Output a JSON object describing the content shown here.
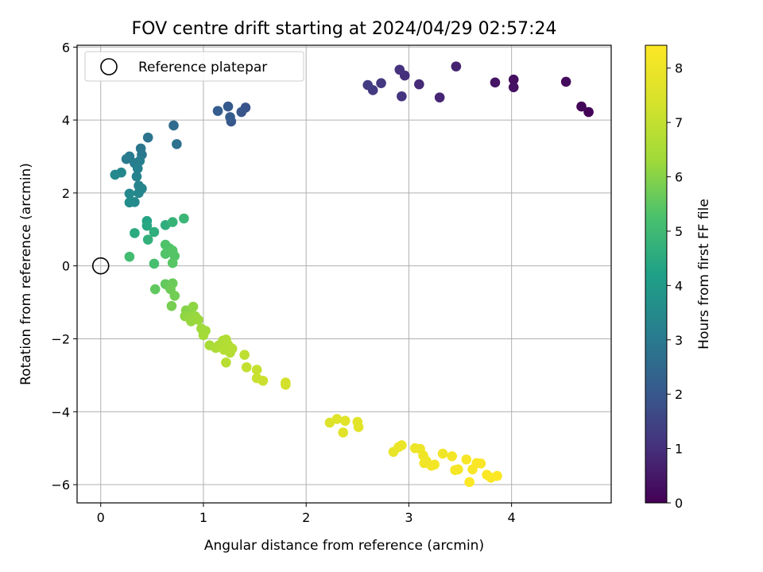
{
  "chart_data": {
    "type": "scatter",
    "title": "FOV centre drift starting at 2024/04/29 02:57:24",
    "xlabel": "Angular distance from reference (arcmin)",
    "ylabel": "Rotation from reference (arcmin)",
    "xlim": [
      -0.23,
      4.97
    ],
    "ylim": [
      -6.5,
      6.05
    ],
    "xticks": [
      0,
      1,
      2,
      3,
      4
    ],
    "yticks": [
      -6,
      -4,
      -2,
      0,
      2,
      4,
      6
    ],
    "grid": true,
    "legend": {
      "position": "top-left",
      "entries": [
        "Reference platepar"
      ]
    },
    "reference_point": {
      "x": 0,
      "y": 0
    },
    "colorbar": {
      "label": "Hours from first FF file",
      "range": [
        0,
        8.42
      ],
      "ticks": [
        0,
        1,
        2,
        3,
        4,
        5,
        6,
        7,
        8
      ],
      "colormap": "viridis"
    },
    "points": [
      {
        "x": 4.75,
        "y": 4.22,
        "h": 0.05
      },
      {
        "x": 4.68,
        "y": 4.37,
        "h": 0.1
      },
      {
        "x": 4.53,
        "y": 5.05,
        "h": 0.2
      },
      {
        "x": 4.02,
        "y": 5.11,
        "h": 0.3
      },
      {
        "x": 4.02,
        "y": 4.9,
        "h": 0.35
      },
      {
        "x": 3.84,
        "y": 5.03,
        "h": 0.4
      },
      {
        "x": 3.46,
        "y": 5.47,
        "h": 0.7
      },
      {
        "x": 3.3,
        "y": 4.62,
        "h": 0.8
      },
      {
        "x": 3.1,
        "y": 4.98,
        "h": 0.9
      },
      {
        "x": 2.96,
        "y": 5.22,
        "h": 1.0
      },
      {
        "x": 2.91,
        "y": 5.38,
        "h": 1.05
      },
      {
        "x": 2.93,
        "y": 4.65,
        "h": 1.1
      },
      {
        "x": 2.73,
        "y": 5.01,
        "h": 1.2
      },
      {
        "x": 2.65,
        "y": 4.82,
        "h": 1.25
      },
      {
        "x": 2.6,
        "y": 4.96,
        "h": 1.3
      },
      {
        "x": 1.41,
        "y": 4.34,
        "h": 1.9
      },
      {
        "x": 1.37,
        "y": 4.22,
        "h": 1.95
      },
      {
        "x": 1.27,
        "y": 3.96,
        "h": 2.0
      },
      {
        "x": 1.24,
        "y": 4.37,
        "h": 2.05
      },
      {
        "x": 1.26,
        "y": 4.08,
        "h": 2.1
      },
      {
        "x": 1.14,
        "y": 4.25,
        "h": 2.15
      },
      {
        "x": 0.71,
        "y": 3.85,
        "h": 2.6
      },
      {
        "x": 0.74,
        "y": 3.34,
        "h": 2.7
      },
      {
        "x": 0.46,
        "y": 3.52,
        "h": 2.8
      },
      {
        "x": 0.39,
        "y": 3.22,
        "h": 2.9
      },
      {
        "x": 0.4,
        "y": 3.05,
        "h": 2.95
      },
      {
        "x": 0.28,
        "y": 3.0,
        "h": 3.0
      },
      {
        "x": 0.25,
        "y": 2.93,
        "h": 3.05
      },
      {
        "x": 0.33,
        "y": 2.82,
        "h": 3.1
      },
      {
        "x": 0.38,
        "y": 2.88,
        "h": 3.15
      },
      {
        "x": 0.36,
        "y": 2.67,
        "h": 3.2
      },
      {
        "x": 0.35,
        "y": 2.45,
        "h": 3.25
      },
      {
        "x": 0.37,
        "y": 2.2,
        "h": 3.3
      },
      {
        "x": 0.4,
        "y": 2.12,
        "h": 3.35
      },
      {
        "x": 0.37,
        "y": 2.0,
        "h": 3.4
      },
      {
        "x": 0.28,
        "y": 1.98,
        "h": 3.45
      },
      {
        "x": 0.33,
        "y": 1.75,
        "h": 3.5
      },
      {
        "x": 0.28,
        "y": 1.74,
        "h": 3.55
      },
      {
        "x": 0.2,
        "y": 2.56,
        "h": 3.4
      },
      {
        "x": 0.14,
        "y": 2.5,
        "h": 3.45
      },
      {
        "x": 0.45,
        "y": 1.23,
        "h": 4.3
      },
      {
        "x": 0.45,
        "y": 1.1,
        "h": 4.4
      },
      {
        "x": 0.33,
        "y": 0.9,
        "h": 4.5
      },
      {
        "x": 0.52,
        "y": 0.93,
        "h": 4.6
      },
      {
        "x": 0.46,
        "y": 0.72,
        "h": 4.7
      },
      {
        "x": 0.63,
        "y": 1.12,
        "h": 4.6
      },
      {
        "x": 0.7,
        "y": 1.2,
        "h": 4.8
      },
      {
        "x": 0.81,
        "y": 1.3,
        "h": 4.9
      },
      {
        "x": 0.28,
        "y": 0.25,
        "h": 5.1
      },
      {
        "x": 0.52,
        "y": 0.06,
        "h": 5.2
      },
      {
        "x": 0.63,
        "y": 0.58,
        "h": 5.3
      },
      {
        "x": 0.67,
        "y": 0.48,
        "h": 5.3
      },
      {
        "x": 0.63,
        "y": 0.33,
        "h": 5.35
      },
      {
        "x": 0.7,
        "y": 0.42,
        "h": 5.4
      },
      {
        "x": 0.72,
        "y": 0.27,
        "h": 5.4
      },
      {
        "x": 0.7,
        "y": 0.08,
        "h": 5.45
      },
      {
        "x": 0.63,
        "y": -0.5,
        "h": 5.55
      },
      {
        "x": 0.66,
        "y": -0.55,
        "h": 5.6
      },
      {
        "x": 0.7,
        "y": -0.48,
        "h": 5.65
      },
      {
        "x": 0.68,
        "y": -0.64,
        "h": 5.7
      },
      {
        "x": 0.72,
        "y": -0.82,
        "h": 5.75
      },
      {
        "x": 0.53,
        "y": -0.64,
        "h": 5.55
      },
      {
        "x": 0.69,
        "y": -1.1,
        "h": 5.8
      },
      {
        "x": 0.83,
        "y": -1.22,
        "h": 6.0
      },
      {
        "x": 0.88,
        "y": -1.2,
        "h": 6.05
      },
      {
        "x": 0.9,
        "y": -1.12,
        "h": 6.1
      },
      {
        "x": 0.82,
        "y": -1.38,
        "h": 6.1
      },
      {
        "x": 0.86,
        "y": -1.42,
        "h": 6.15
      },
      {
        "x": 0.92,
        "y": -1.38,
        "h": 6.2
      },
      {
        "x": 0.88,
        "y": -1.52,
        "h": 6.2
      },
      {
        "x": 0.95,
        "y": -1.48,
        "h": 6.25
      },
      {
        "x": 0.98,
        "y": -1.72,
        "h": 6.3
      },
      {
        "x": 1.02,
        "y": -1.78,
        "h": 6.35
      },
      {
        "x": 1.0,
        "y": -1.9,
        "h": 6.4
      },
      {
        "x": 1.06,
        "y": -2.18,
        "h": 6.5
      },
      {
        "x": 1.12,
        "y": -2.25,
        "h": 6.55
      },
      {
        "x": 1.15,
        "y": -2.18,
        "h": 6.6
      },
      {
        "x": 1.19,
        "y": -2.05,
        "h": 6.6
      },
      {
        "x": 1.22,
        "y": -2.02,
        "h": 6.65
      },
      {
        "x": 1.24,
        "y": -2.16,
        "h": 6.65
      },
      {
        "x": 1.2,
        "y": -2.3,
        "h": 6.7
      },
      {
        "x": 1.26,
        "y": -2.38,
        "h": 6.7
      },
      {
        "x": 1.28,
        "y": -2.27,
        "h": 6.75
      },
      {
        "x": 1.22,
        "y": -2.65,
        "h": 6.8
      },
      {
        "x": 1.4,
        "y": -2.44,
        "h": 6.9
      },
      {
        "x": 1.42,
        "y": -2.78,
        "h": 7.0
      },
      {
        "x": 1.52,
        "y": -2.85,
        "h": 7.05
      },
      {
        "x": 1.52,
        "y": -3.08,
        "h": 7.1
      },
      {
        "x": 1.58,
        "y": -3.15,
        "h": 7.15
      },
      {
        "x": 1.8,
        "y": -3.2,
        "h": 7.3
      },
      {
        "x": 1.8,
        "y": -3.26,
        "h": 7.3
      },
      {
        "x": 2.23,
        "y": -4.3,
        "h": 7.55
      },
      {
        "x": 2.3,
        "y": -4.2,
        "h": 7.6
      },
      {
        "x": 2.38,
        "y": -4.25,
        "h": 7.65
      },
      {
        "x": 2.36,
        "y": -4.57,
        "h": 7.65
      },
      {
        "x": 2.5,
        "y": -4.28,
        "h": 7.7
      },
      {
        "x": 2.51,
        "y": -4.42,
        "h": 7.7
      },
      {
        "x": 2.85,
        "y": -5.1,
        "h": 7.85
      },
      {
        "x": 2.9,
        "y": -4.97,
        "h": 7.9
      },
      {
        "x": 2.93,
        "y": -4.92,
        "h": 7.9
      },
      {
        "x": 3.06,
        "y": -5.0,
        "h": 8.0
      },
      {
        "x": 3.11,
        "y": -5.02,
        "h": 8.0
      },
      {
        "x": 3.14,
        "y": -5.2,
        "h": 8.05
      },
      {
        "x": 3.17,
        "y": -5.35,
        "h": 8.05
      },
      {
        "x": 3.15,
        "y": -5.41,
        "h": 8.1
      },
      {
        "x": 3.22,
        "y": -5.48,
        "h": 8.1
      },
      {
        "x": 3.25,
        "y": -5.45,
        "h": 8.15
      },
      {
        "x": 3.33,
        "y": -5.15,
        "h": 8.1
      },
      {
        "x": 3.42,
        "y": -5.22,
        "h": 8.15
      },
      {
        "x": 3.45,
        "y": -5.6,
        "h": 8.2
      },
      {
        "x": 3.48,
        "y": -5.58,
        "h": 8.2
      },
      {
        "x": 3.56,
        "y": -5.31,
        "h": 8.25
      },
      {
        "x": 3.62,
        "y": -5.58,
        "h": 8.25
      },
      {
        "x": 3.66,
        "y": -5.41,
        "h": 8.3
      },
      {
        "x": 3.7,
        "y": -5.42,
        "h": 8.3
      },
      {
        "x": 3.76,
        "y": -5.73,
        "h": 8.35
      },
      {
        "x": 3.8,
        "y": -5.81,
        "h": 8.35
      },
      {
        "x": 3.86,
        "y": -5.76,
        "h": 8.4
      },
      {
        "x": 3.59,
        "y": -5.93,
        "h": 8.4
      }
    ]
  }
}
